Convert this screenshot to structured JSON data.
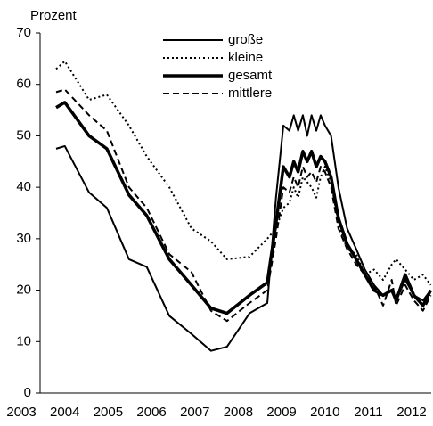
{
  "chart_data": {
    "type": "line",
    "y_label": "Prozent",
    "x": [
      2003.8,
      2004.0,
      2004.56,
      2004.97,
      2005.48,
      2005.89,
      2006.41,
      2006.92,
      2007.37,
      2007.74,
      2008.26,
      2008.67,
      2008.87,
      2009.04,
      2009.18,
      2009.28,
      2009.38,
      2009.49,
      2009.59,
      2009.69,
      2009.8,
      2009.9,
      2010.0,
      2010.14,
      2010.31,
      2010.51,
      2010.72,
      2010.92,
      2011.13,
      2011.34,
      2011.54,
      2011.64,
      2011.85,
      2012.05,
      2012.26,
      2012.44
    ],
    "series": [
      {
        "name": "große",
        "color": "#000000",
        "line_style": "solid",
        "line_width": 2,
        "values": [
          47.5,
          48,
          39,
          36,
          26,
          24.5,
          15,
          11.5,
          8.2,
          9,
          15.5,
          17.5,
          38,
          52,
          51,
          54,
          51,
          54,
          50,
          54,
          51,
          54,
          52,
          50,
          40,
          32,
          28,
          24,
          21,
          19,
          20,
          18,
          22,
          19,
          18,
          20
        ]
      },
      {
        "name": "kleine",
        "color": "#000000",
        "line_style": "dotted",
        "line_width": 2,
        "values": [
          63,
          64.5,
          57,
          58,
          52,
          46,
          40,
          32,
          29.5,
          26,
          26.5,
          30,
          32,
          36,
          37,
          40,
          38,
          42,
          41,
          40,
          38,
          42,
          44,
          41,
          33,
          28,
          27,
          23,
          24,
          22,
          25,
          26,
          24,
          22,
          23,
          21
        ]
      },
      {
        "name": "gesamt",
        "color": "#000000",
        "line_style": "solid",
        "line_width": 3.5,
        "values": [
          55.5,
          56.5,
          50,
          47.5,
          38.5,
          34.5,
          26,
          21,
          16.5,
          15.5,
          19,
          21.5,
          33,
          44,
          42,
          45,
          43,
          47,
          45,
          47,
          44,
          46,
          45,
          42,
          34,
          29,
          26,
          23,
          20,
          19,
          20,
          18,
          23,
          19,
          17,
          20
        ]
      },
      {
        "name": "mittlere",
        "color": "#000000",
        "line_style": "dashed",
        "line_width": 2,
        "values": [
          58.5,
          59,
          54,
          51,
          40,
          36,
          27,
          23.5,
          16,
          14,
          17.5,
          20,
          30,
          40,
          39,
          42,
          40,
          44,
          42,
          43,
          41,
          44,
          43,
          40,
          32,
          28,
          25,
          23,
          21,
          17,
          22,
          17,
          21,
          18,
          16,
          19
        ]
      }
    ],
    "xlim": [
      2003.43,
      2012.45
    ],
    "xticks": [
      2003,
      2004,
      2005,
      2006,
      2007,
      2008,
      2009,
      2010,
      2011,
      2012
    ],
    "ylim": [
      0,
      70
    ],
    "yticks": [
      0,
      10,
      20,
      30,
      40,
      50,
      60,
      70
    ],
    "grid": false
  }
}
